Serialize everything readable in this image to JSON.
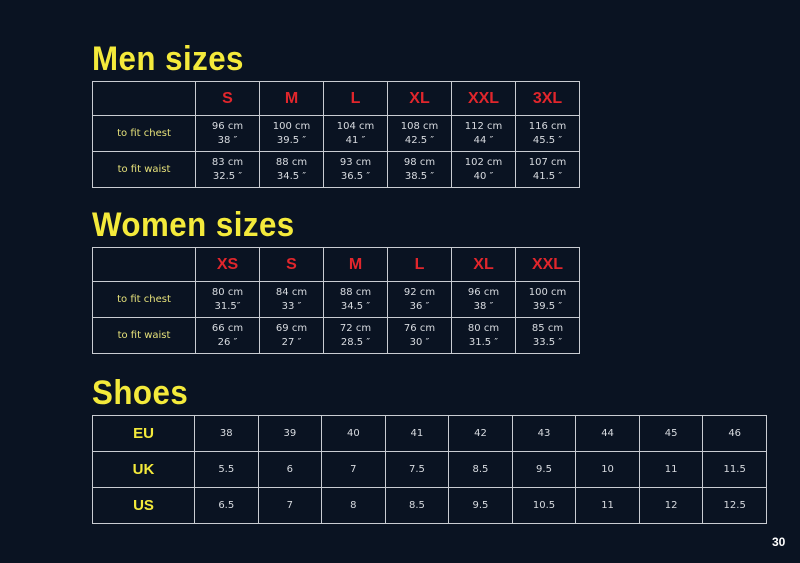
{
  "men": {
    "title": "Men sizes",
    "sizes": [
      "S",
      "M",
      "L",
      "XL",
      "XXL",
      "3XL"
    ],
    "rows": [
      {
        "label": "to fit chest",
        "cm": [
          "96 cm",
          "100 cm",
          "104 cm",
          "108 cm",
          "112 cm",
          "116 cm"
        ],
        "in": [
          "38 ″",
          "39.5 ″",
          "41 ″",
          "42.5 ″",
          "44 ″",
          "45.5 ″"
        ]
      },
      {
        "label": "to fit waist",
        "cm": [
          "83 cm",
          "88 cm",
          "93 cm",
          "98 cm",
          "102 cm",
          "107 cm"
        ],
        "in": [
          "32.5 ″",
          "34.5 ″",
          "36.5 ″",
          "38.5 ″",
          "40 ″",
          "41.5 ″"
        ]
      }
    ]
  },
  "women": {
    "title": "Women sizes",
    "sizes": [
      "XS",
      "S",
      "M",
      "L",
      "XL",
      "XXL"
    ],
    "rows": [
      {
        "label": "to fit chest",
        "cm": [
          "80 cm",
          "84 cm",
          "88 cm",
          "92 cm",
          "96 cm",
          "100 cm"
        ],
        "in": [
          "31.5″",
          "33 ″",
          "34.5 ″",
          "36 ″",
          "38 ″",
          "39.5 ″"
        ]
      },
      {
        "label": "to fit waist",
        "cm": [
          "66 cm",
          "69 cm",
          "72 cm",
          "76 cm",
          "80 cm",
          "85 cm"
        ],
        "in": [
          "26 ″",
          "27 ″",
          "28.5 ″",
          "30 ″",
          "31.5 ″",
          "33.5 ″"
        ]
      }
    ]
  },
  "shoes": {
    "title": "Shoes",
    "rows": [
      {
        "label": "EU",
        "values": [
          "38",
          "39",
          "40",
          "41",
          "42",
          "43",
          "44",
          "45",
          "46"
        ]
      },
      {
        "label": "UK",
        "values": [
          "5.5",
          "6",
          "7",
          "7.5",
          "8.5",
          "9.5",
          "10",
          "11",
          "11.5"
        ]
      },
      {
        "label": "US",
        "values": [
          "6.5",
          "7",
          "8",
          "8.5",
          "9.5",
          "10.5",
          "11",
          "12",
          "12.5"
        ]
      }
    ]
  },
  "page_number": "30",
  "colors": {
    "background": "#0a1322",
    "title": "#f4ea3b",
    "size_header": "#e1262c",
    "row_label": "#e6e17a"
  }
}
